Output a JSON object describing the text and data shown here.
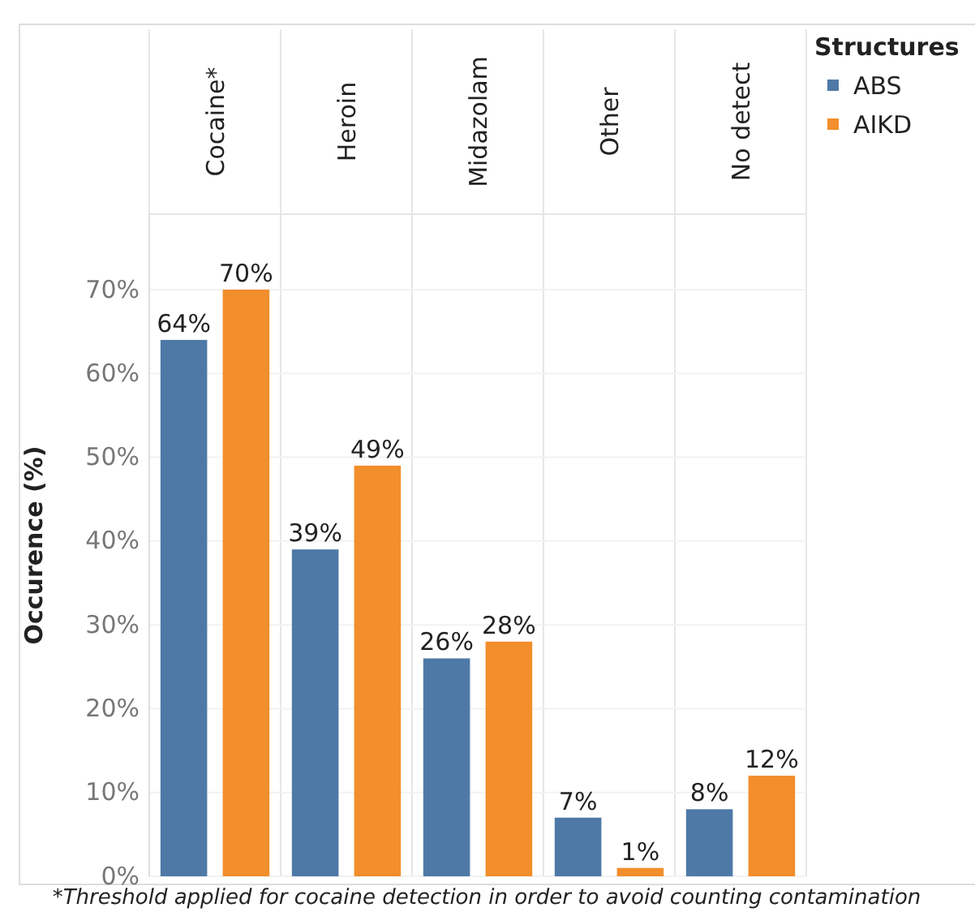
{
  "chart_data": {
    "type": "bar",
    "ylabel": "Occurence (%)",
    "legend_title": "Structures",
    "legend": "top right",
    "grid": "y",
    "categories": [
      "Cocaine*",
      "Heroin",
      "Midazolam",
      "Other",
      "No detect"
    ],
    "series": [
      {
        "name": "ABS",
        "color": "#4e79a7",
        "values": [
          64,
          39,
          26,
          7,
          8
        ],
        "value_labels": [
          "64%",
          "39%",
          "26%",
          "7%",
          "8%"
        ]
      },
      {
        "name": "AIKD",
        "color": "#f28e2b",
        "values": [
          70,
          49,
          28,
          1,
          12
        ],
        "value_labels": [
          "70%",
          "49%",
          "28%",
          "1%",
          "12%"
        ]
      }
    ],
    "ylim": [
      0,
      79
    ],
    "yticks": [
      {
        "value": 0,
        "label": "0%"
      },
      {
        "value": 10,
        "label": "10%"
      },
      {
        "value": 20,
        "label": "20%"
      },
      {
        "value": 30,
        "label": "30%"
      },
      {
        "value": 40,
        "label": "40%"
      },
      {
        "value": 50,
        "label": "50%"
      },
      {
        "value": 60,
        "label": "60%"
      },
      {
        "value": 70,
        "label": "70%"
      }
    ],
    "annotations": [
      "*Threshold applied for cocaine detection in order to avoid counting contamination"
    ]
  }
}
